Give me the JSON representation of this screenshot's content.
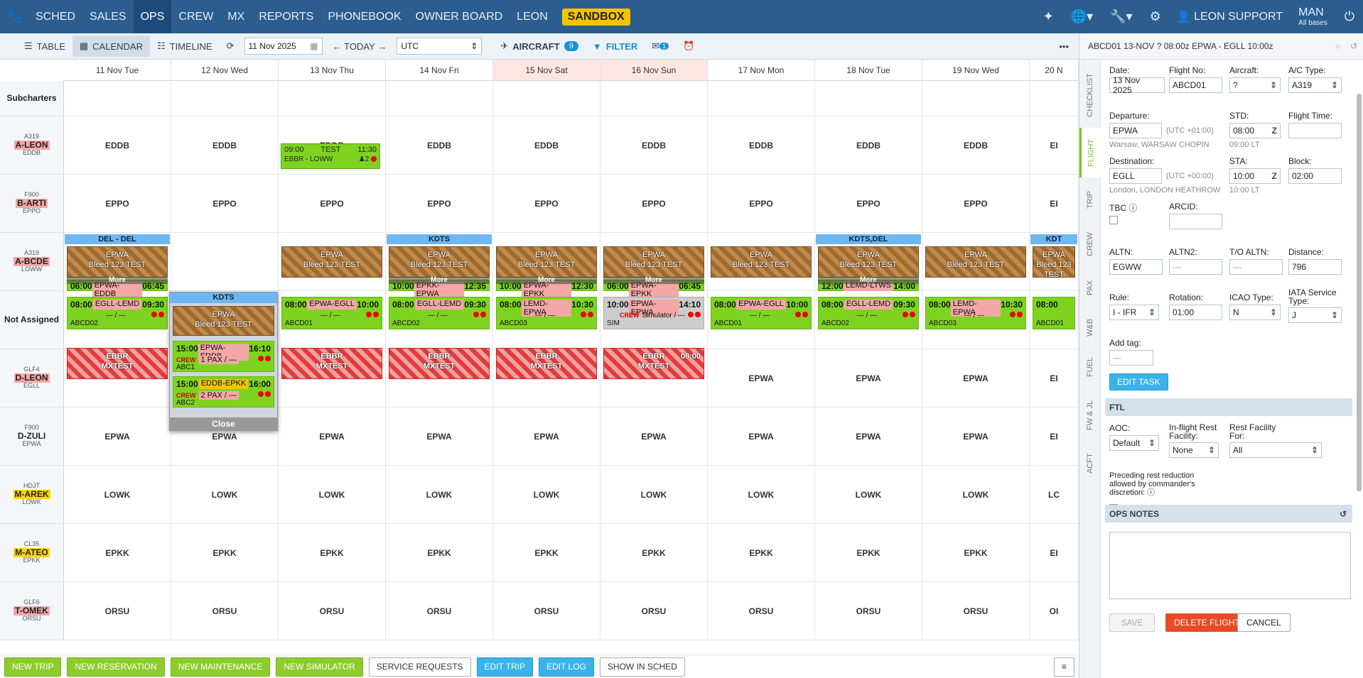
{
  "nav": {
    "items": [
      "SCHED",
      "SALES",
      "OPS",
      "CREW",
      "MX",
      "REPORTS",
      "PHONEBOOK",
      "OWNER BOARD",
      "LEON"
    ],
    "sandbox": "SANDBOX",
    "user": "LEON SUPPORT",
    "base": "MAN",
    "base_sub": "All bases"
  },
  "toolbar": {
    "table": "TABLE",
    "calendar": "CALENDAR",
    "timeline": "TIMELINE",
    "date": "11 Nov 2025",
    "today": "TODAY",
    "tz": "UTC",
    "aircraft": "AIRCRAFT",
    "aircraft_count": "9",
    "filter": "FILTER",
    "mail_count": "1"
  },
  "columns": [
    "11 Nov Tue",
    "12 Nov Wed",
    "13 Nov Thu",
    "14 Nov Fri",
    "15 Nov Sat",
    "16 Nov Sun",
    "17 Nov Mon",
    "18 Nov Tue",
    "19 Nov Wed",
    "20 N"
  ],
  "rows": {
    "subcharters": "Subcharters",
    "not_assigned": "Not Assigned",
    "aircraft": [
      {
        "type": "A319",
        "reg": "A-LEON",
        "base": "EDDB"
      },
      {
        "type": "F900",
        "reg": "B-ARTI",
        "base": "EPPO"
      },
      {
        "type": "A319",
        "reg": "A-BCDE",
        "base": "LOWW"
      },
      {
        "type": "GLF4",
        "reg": "D-LEON",
        "base": "EGLL"
      },
      {
        "type": "F900",
        "reg": "D-ZULI",
        "base": "EPWA"
      },
      {
        "type": "HDJT",
        "reg": "M-AREK",
        "base": "LOWK"
      },
      {
        "type": "CL35",
        "reg": "M-ATEO",
        "base": "EPKK"
      },
      {
        "type": "GLF6",
        "reg": "T-OMEK",
        "base": "ORSU"
      }
    ]
  },
  "cells": {
    "a_leon": [
      "EDDB",
      "EDDB",
      "EDDB",
      "EDDB",
      "EDDB",
      "EDDB",
      "EDDB",
      "EDDB",
      "EDDB",
      "EI"
    ],
    "b_arti": [
      "EPPO",
      "EPPO",
      "EPPO",
      "EPPO",
      "EPPO",
      "EPPO",
      "EPPO",
      "EPPO",
      "EPPO",
      "EI"
    ],
    "d_leon_tail": [
      "EPWA",
      "EPWA",
      "EPWA",
      "EI"
    ],
    "d_zuli": [
      "EPWA",
      "EPWA",
      "EPWA",
      "EPWA",
      "EPWA",
      "EPWA",
      "EPWA",
      "EPWA",
      "EPWA",
      "EI"
    ],
    "m_arek": [
      "LOWK",
      "LOWK",
      "LOWK",
      "LOWK",
      "LOWK",
      "LOWK",
      "LOWK",
      "LOWK",
      "LOWK",
      "LC"
    ],
    "m_ateo": [
      "EPKK",
      "EPKK",
      "EPKK",
      "EPKK",
      "EPKK",
      "EPKK",
      "EPKK",
      "EPKK",
      "EPKK",
      "EI"
    ],
    "t_omek": [
      "ORSU",
      "ORSU",
      "ORSU",
      "ORSU",
      "ORSU",
      "ORSU",
      "ORSU",
      "ORSU",
      "ORSU",
      "OI"
    ]
  },
  "subcharter": {
    "std": "09:00",
    "label": "TEST",
    "sta": "11:30",
    "route": "EBBR - LOWW",
    "pax": "2"
  },
  "mx_headers": [
    "DEL - DEL",
    "KDTS",
    "KDTS",
    "KDTS,DEL",
    "KDT"
  ],
  "mx": {
    "line1": "EPWA",
    "line2": "Bleed 123 TEST",
    "more": "More"
  },
  "mx_red": {
    "line1": "EBBR",
    "line2": "MXTEST",
    "time": "08:00"
  },
  "flights": [
    {
      "std": "08:00",
      "route": "EGLL-LEMD",
      "sta": "09:30",
      "mid": "— / —",
      "code": "ABCD02"
    },
    {
      "std": "08:00",
      "route": "EPWA-EGLL",
      "sta": "10:00",
      "mid": "— / —",
      "code": "ABCD01"
    },
    {
      "std": "08:00",
      "route": "EGLL-LEMD",
      "sta": "09:30",
      "mid": "— / —",
      "code": "ABCD02"
    },
    {
      "std": "08:00",
      "route": "LEMD-EPWA",
      "sta": "10:30",
      "mid": "— / —",
      "code": "ABCD03"
    },
    {
      "std": "10:00",
      "route": "EPWA-EPWA",
      "sta": "14:10",
      "mid": "Simulator / —",
      "code": "SIM",
      "crew": "CREW"
    },
    {
      "std": "08:00",
      "route": "EPWA-EGLL",
      "sta": "10:00",
      "mid": "— / —",
      "code": "ABCD01"
    },
    {
      "std": "08:00",
      "route": "EGLL-LEMD",
      "sta": "09:30",
      "mid": "— / —",
      "code": "ABCD02"
    },
    {
      "std": "08:00",
      "route": "LEMD-EPWA",
      "sta": "10:30",
      "mid": "— / —",
      "code": "ABCD03"
    },
    {
      "std": "08:00",
      "route": "",
      "sta": "",
      "mid": "",
      "code": "ABCD01"
    }
  ],
  "mini_flights": [
    {
      "std": "06:00",
      "route": "EPWA-EDDB",
      "sta": "06:45"
    },
    {
      "std": "10:00",
      "route": "EPWA-EPKK",
      "sta": "12:30"
    },
    {
      "std": "06:00",
      "route": "EPWA-EPKK",
      "sta": "06:45"
    },
    {
      "std": "12:00",
      "route": "LEMD-LTWS",
      "sta": "14:00"
    },
    {
      "std": "10:00",
      "route": "EPKK-EPWA",
      "sta": "12:35"
    }
  ],
  "popup": {
    "header": "KDTS",
    "mx1": "EPWA",
    "mx2": "Bleed 123 TEST",
    "f1": {
      "std": "15:00",
      "route": "EPWA-EDDB",
      "sta": "16:10",
      "crew": "CREW",
      "pax": "1 PAX / —",
      "code": "ABC1"
    },
    "f2": {
      "std": "15:00",
      "route": "EDDB-EPKK",
      "sta": "16:00",
      "crew": "CREW",
      "pax": "2 PAX / —",
      "code": "ABC2"
    },
    "close": "Close"
  },
  "bottom": [
    "NEW TRIP",
    "NEW RESERVATION",
    "NEW MAINTENANCE",
    "NEW SIMULATOR",
    "SERVICE REQUESTS",
    "EDIT TRIP",
    "EDIT LOG",
    "SHOW IN SCHED"
  ],
  "panel": {
    "title": "ABCD01  13-NOV  ? 08:00z EPWA - EGLL 10:00z",
    "tabs": [
      "CHECKLIST",
      "FLIGHT",
      "TRIP",
      "CREW",
      "PAX",
      "W&B",
      "FUEL",
      "FW & JL",
      "ACFT"
    ],
    "date_l": "Date:",
    "date": "13 Nov 2025",
    "fno_l": "Flight No:",
    "fno": "ABCD01",
    "ac_l": "Aircraft:",
    "ac": "?",
    "actype_l": "A/C Type:",
    "actype": "A319",
    "dep_l": "Departure:",
    "dep": "EPWA",
    "dep_utc": "(UTC +01:00)",
    "dep_name": "Warsaw, WARSAW CHOPIN",
    "std_l": "STD:",
    "std": "08:00",
    "std_lt": "09:00 LT",
    "z": "Z",
    "ft_l": "Flight Time:",
    "ft": "",
    "dest_l": "Destination:",
    "dest": "EGLL",
    "dest_utc": "(UTC +00:00)",
    "dest_name": "London, LONDON HEATHROW",
    "sta_l": "STA:",
    "sta": "10:00",
    "sta_lt": "10:00 LT",
    "block_l": "Block:",
    "block": "02:00",
    "tbc_l": "TBC",
    "arcid_l": "ARCID:",
    "arcid": "",
    "altn_l": "ALTN:",
    "altn": "EGWW",
    "altn2_l": "ALTN2:",
    "altn2": "---",
    "toaltn_l": "T/O ALTN:",
    "toaltn": "---",
    "dist_l": "Distance:",
    "dist": "796",
    "rule_l": "Rule:",
    "rule": "I - IFR",
    "rot_l": "Rotation:",
    "rot": "01:00",
    "icao_l": "ICAO Type:",
    "icao": "N",
    "iata_l": "IATA Service Type:",
    "iata": "J",
    "tag_l": "Add tag:",
    "tag": "---",
    "edit_task": "EDIT TASK",
    "ftl": "FTL",
    "aoc_l": "AOC:",
    "aoc": "Default",
    "rest_l": "In-flight Rest Facility:",
    "rest": "None",
    "restfor_l": "Rest Facility For:",
    "restfor": "All",
    "preceding": "Preceding rest reduction allowed by commander's discretion:",
    "ops_notes": "OPS NOTES",
    "save": "SAVE",
    "delete": "DELETE FLIGHT",
    "cancel": "CANCEL"
  }
}
